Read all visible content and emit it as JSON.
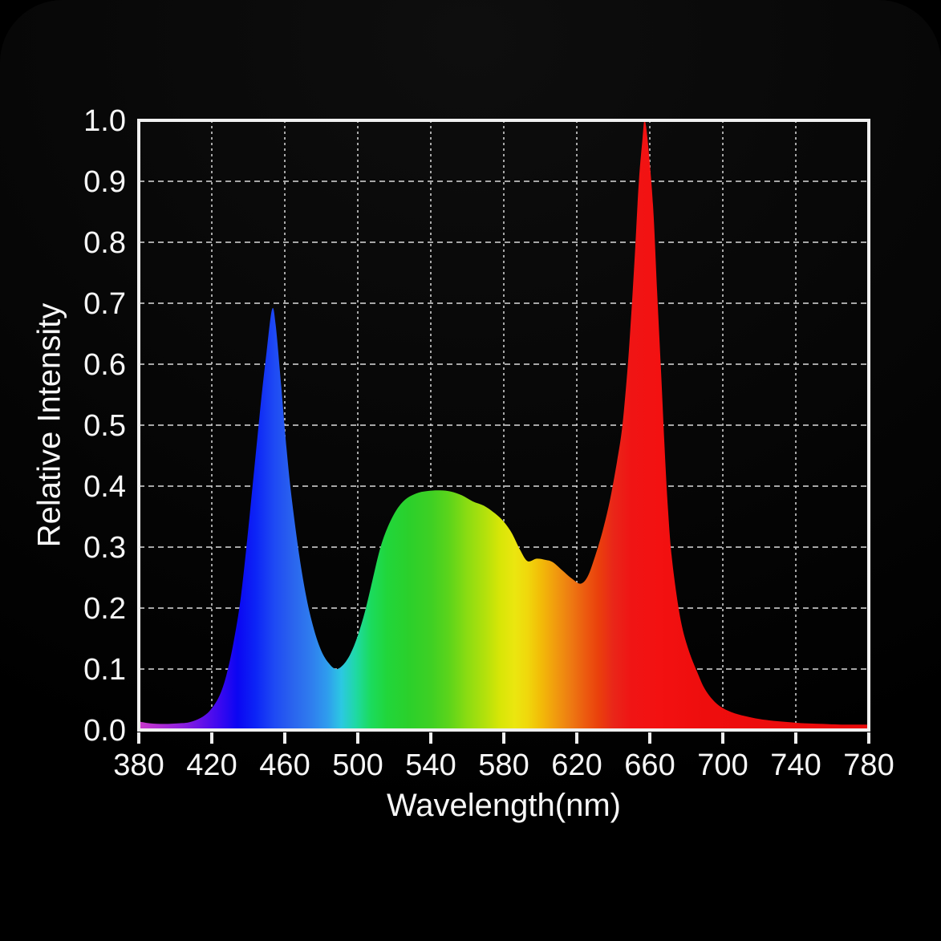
{
  "figure": {
    "background_color": "#000000",
    "text_color": "#f7f7f7",
    "axis_color": "#f0f0f0",
    "grid_color": "#cfcfcf"
  },
  "chart_data": {
    "type": "area",
    "title": "",
    "xlabel": "Wavelength(nm)",
    "ylabel": "Relative Intensity",
    "xlim": [
      380,
      780
    ],
    "ylim": [
      0.0,
      1.0
    ],
    "grid": true,
    "legend": "none",
    "x_ticks": [
      380,
      420,
      460,
      500,
      540,
      580,
      620,
      660,
      700,
      740,
      780
    ],
    "x_tick_labels": [
      "380",
      "420",
      "460",
      "500",
      "540",
      "580",
      "620",
      "660",
      "700",
      "740",
      "780"
    ],
    "y_ticks": [
      0.0,
      0.1,
      0.2,
      0.3,
      0.4,
      0.5,
      0.6,
      0.7,
      0.8,
      0.9,
      1.0
    ],
    "y_tick_labels": [
      "0.0",
      "0.1",
      "0.2",
      "0.3",
      "0.4",
      "0.5",
      "0.6",
      "0.7",
      "0.8",
      "0.9",
      "1.0"
    ],
    "series": [
      {
        "name": "led-spectrum-relative-intensity",
        "style": "filled-area-spectral-gradient",
        "notable_features": {
          "blue_peak": {
            "wavelength_nm": 453,
            "intensity": 0.69
          },
          "green_plateau": {
            "wavelength_nm": 545,
            "intensity": 0.39
          },
          "blue_green_valley": {
            "wavelength_nm": 488,
            "intensity": 0.1
          },
          "orange_dip": {
            "wavelength_nm": 622,
            "intensity": 0.24
          },
          "red_peak": {
            "wavelength_nm": 657,
            "intensity": 1.0
          }
        },
        "points": [
          [
            380,
            0.014
          ],
          [
            386,
            0.011
          ],
          [
            394,
            0.01
          ],
          [
            402,
            0.011
          ],
          [
            408,
            0.013
          ],
          [
            414,
            0.02
          ],
          [
            419,
            0.032
          ],
          [
            424,
            0.055
          ],
          [
            428,
            0.09
          ],
          [
            432,
            0.145
          ],
          [
            436,
            0.22
          ],
          [
            440,
            0.33
          ],
          [
            444,
            0.45
          ],
          [
            447,
            0.54
          ],
          [
            450,
            0.62
          ],
          [
            453,
            0.69
          ],
          [
            455,
            0.665
          ],
          [
            458,
            0.565
          ],
          [
            461,
            0.46
          ],
          [
            464,
            0.375
          ],
          [
            468,
            0.285
          ],
          [
            472,
            0.215
          ],
          [
            476,
            0.165
          ],
          [
            480,
            0.13
          ],
          [
            484,
            0.11
          ],
          [
            488,
            0.1
          ],
          [
            492,
            0.107
          ],
          [
            496,
            0.125
          ],
          [
            500,
            0.155
          ],
          [
            504,
            0.195
          ],
          [
            508,
            0.245
          ],
          [
            512,
            0.295
          ],
          [
            516,
            0.33
          ],
          [
            521,
            0.36
          ],
          [
            526,
            0.378
          ],
          [
            532,
            0.388
          ],
          [
            538,
            0.392
          ],
          [
            545,
            0.393
          ],
          [
            551,
            0.391
          ],
          [
            557,
            0.385
          ],
          [
            563,
            0.375
          ],
          [
            569,
            0.368
          ],
          [
            574,
            0.358
          ],
          [
            579,
            0.345
          ],
          [
            584,
            0.325
          ],
          [
            589,
            0.295
          ],
          [
            593,
            0.277
          ],
          [
            598,
            0.281
          ],
          [
            603,
            0.279
          ],
          [
            607,
            0.275
          ],
          [
            612,
            0.262
          ],
          [
            617,
            0.249
          ],
          [
            622,
            0.24
          ],
          [
            626,
            0.252
          ],
          [
            630,
            0.285
          ],
          [
            634,
            0.325
          ],
          [
            638,
            0.375
          ],
          [
            642,
            0.44
          ],
          [
            645,
            0.5
          ],
          [
            648,
            0.6
          ],
          [
            650,
            0.69
          ],
          [
            652,
            0.79
          ],
          [
            654,
            0.9
          ],
          [
            656,
            0.97
          ],
          [
            657,
            1.0
          ],
          [
            658,
            0.99
          ],
          [
            660,
            0.93
          ],
          [
            662,
            0.85
          ],
          [
            664,
            0.72
          ],
          [
            666,
            0.6
          ],
          [
            668,
            0.47
          ],
          [
            670,
            0.36
          ],
          [
            672,
            0.285
          ],
          [
            675,
            0.215
          ],
          [
            678,
            0.165
          ],
          [
            682,
            0.125
          ],
          [
            686,
            0.095
          ],
          [
            690,
            0.068
          ],
          [
            695,
            0.048
          ],
          [
            700,
            0.036
          ],
          [
            706,
            0.028
          ],
          [
            712,
            0.023
          ],
          [
            720,
            0.018
          ],
          [
            728,
            0.015
          ],
          [
            736,
            0.013
          ],
          [
            745,
            0.011
          ],
          [
            755,
            0.01
          ],
          [
            765,
            0.009
          ],
          [
            780,
            0.009
          ]
        ]
      }
    ],
    "fill_gradient_stops": [
      {
        "wavelength_nm": 380,
        "color": "#c93ac9"
      },
      {
        "wavelength_nm": 392,
        "color": "#ad2cd4"
      },
      {
        "wavelength_nm": 404,
        "color": "#8c1fde"
      },
      {
        "wavelength_nm": 414,
        "color": "#6612e8"
      },
      {
        "wavelength_nm": 424,
        "color": "#3c08f0"
      },
      {
        "wavelength_nm": 434,
        "color": "#0b06f2"
      },
      {
        "wavelength_nm": 444,
        "color": "#0c24f6"
      },
      {
        "wavelength_nm": 454,
        "color": "#1e49f4"
      },
      {
        "wavelength_nm": 464,
        "color": "#2a63ee"
      },
      {
        "wavelength_nm": 474,
        "color": "#2f7cee"
      },
      {
        "wavelength_nm": 483,
        "color": "#2f9bee"
      },
      {
        "wavelength_nm": 491,
        "color": "#2cc8e2"
      },
      {
        "wavelength_nm": 499,
        "color": "#1fd9a4"
      },
      {
        "wavelength_nm": 507,
        "color": "#1bdb5e"
      },
      {
        "wavelength_nm": 516,
        "color": "#21d63b"
      },
      {
        "wavelength_nm": 528,
        "color": "#2bd02b"
      },
      {
        "wavelength_nm": 540,
        "color": "#3ed024"
      },
      {
        "wavelength_nm": 550,
        "color": "#5cd41b"
      },
      {
        "wavelength_nm": 560,
        "color": "#8bdc12"
      },
      {
        "wavelength_nm": 570,
        "color": "#b4e10c"
      },
      {
        "wavelength_nm": 578,
        "color": "#d8e607"
      },
      {
        "wavelength_nm": 586,
        "color": "#ebe60f"
      },
      {
        "wavelength_nm": 593,
        "color": "#f0d80c"
      },
      {
        "wavelength_nm": 600,
        "color": "#f2bd08"
      },
      {
        "wavelength_nm": 608,
        "color": "#f19c0e"
      },
      {
        "wavelength_nm": 616,
        "color": "#ee7d12"
      },
      {
        "wavelength_nm": 624,
        "color": "#ec5d10"
      },
      {
        "wavelength_nm": 632,
        "color": "#ea400c"
      },
      {
        "wavelength_nm": 640,
        "color": "#e92619"
      },
      {
        "wavelength_nm": 650,
        "color": "#f01414"
      },
      {
        "wavelength_nm": 665,
        "color": "#f31111"
      },
      {
        "wavelength_nm": 690,
        "color": "#ee0d0d"
      },
      {
        "wavelength_nm": 780,
        "color": "#e90a0a"
      }
    ]
  }
}
